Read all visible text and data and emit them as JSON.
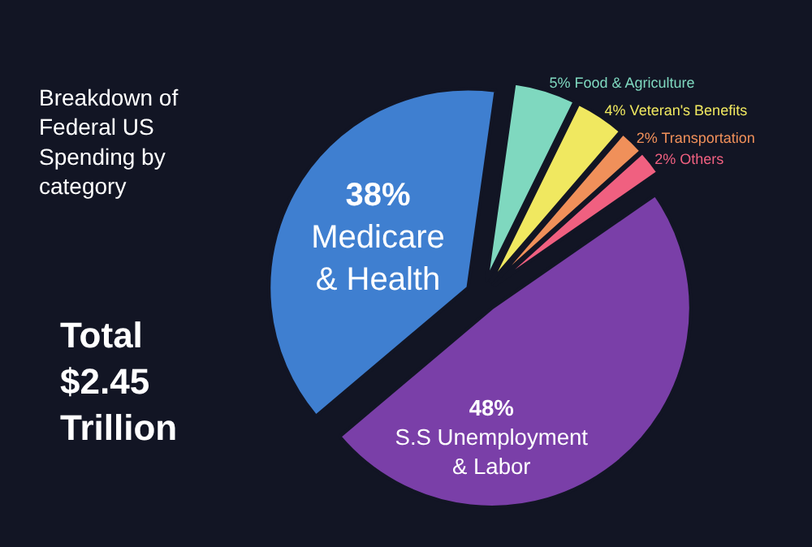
{
  "chart_data": {
    "type": "pie",
    "title": "Breakdown of Federal US Spending by category",
    "subtitle": "Total $2.45 Trillion",
    "categories": [
      "Food & Agriculture",
      "Veteran's Benefits",
      "Transportation",
      "Others",
      "S.S Unemployment & Labor",
      "Medicare & Health"
    ],
    "values": [
      5,
      4,
      2,
      2,
      48,
      38
    ],
    "colors": [
      "#7fd8bf",
      "#f0e860",
      "#f0905a",
      "#f06080",
      "#7a3fa8",
      "#3f7fd0"
    ],
    "value_labels": [
      "5%",
      "4%",
      "2%",
      "2%",
      "48%",
      "38%"
    ],
    "legend": false
  }
}
